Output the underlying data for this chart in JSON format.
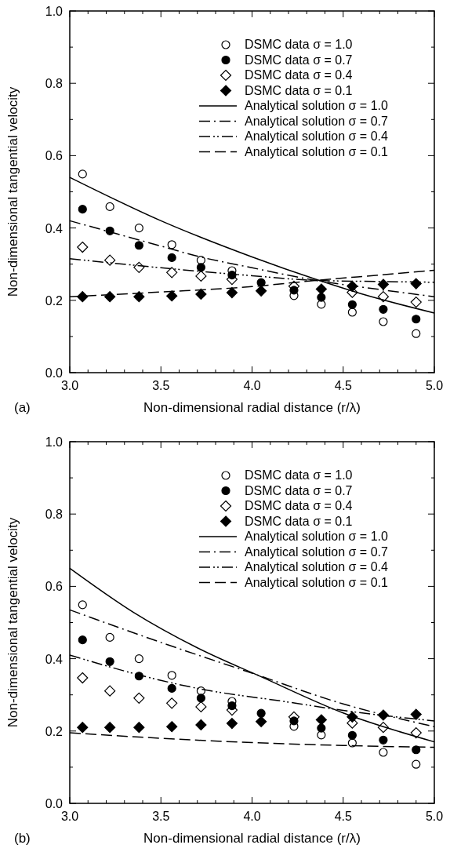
{
  "chart_data": [
    {
      "type": "scatter",
      "xlabel": "Non-dimensional radial distance (r/λ)",
      "ylabel": "Non-dimensional tangential velocity",
      "annotations": [
        "(a)"
      ],
      "legend": "top right",
      "xlim": [
        3.0,
        5.0
      ],
      "ylim": [
        0.0,
        1.0
      ],
      "xticks": [
        {
          "value": 3.0,
          "label": "3.0"
        },
        {
          "value": 3.1,
          "label": null
        },
        {
          "value": 3.2,
          "label": null
        },
        {
          "value": 3.3,
          "label": null
        },
        {
          "value": 3.4,
          "label": null
        },
        {
          "value": 3.5,
          "label": "3.5"
        },
        {
          "value": 3.6,
          "label": null
        },
        {
          "value": 3.7,
          "label": null
        },
        {
          "value": 3.8,
          "label": null
        },
        {
          "value": 3.9,
          "label": null
        },
        {
          "value": 4.0,
          "label": "4.0"
        },
        {
          "value": 4.1,
          "label": null
        },
        {
          "value": 4.2,
          "label": null
        },
        {
          "value": 4.3,
          "label": null
        },
        {
          "value": 4.4,
          "label": null
        },
        {
          "value": 4.5,
          "label": "4.5"
        },
        {
          "value": 4.6,
          "label": null
        },
        {
          "value": 4.7,
          "label": null
        },
        {
          "value": 4.8,
          "label": null
        },
        {
          "value": 4.9,
          "label": null
        },
        {
          "value": 5.0,
          "label": "5.0"
        }
      ],
      "yticks": [
        {
          "value": 0.0,
          "label": "0.0"
        },
        {
          "value": 0.1,
          "label": null
        },
        {
          "value": 0.2,
          "label": "0.2"
        },
        {
          "value": 0.3,
          "label": null
        },
        {
          "value": 0.4,
          "label": "0.4"
        },
        {
          "value": 0.5,
          "label": null
        },
        {
          "value": 0.6,
          "label": "0.6"
        },
        {
          "value": 0.7,
          "label": null
        },
        {
          "value": 0.8,
          "label": "0.8"
        },
        {
          "value": 0.9,
          "label": null
        },
        {
          "value": 1.0,
          "label": "1.0"
        }
      ],
      "x": [
        3.07,
        3.22,
        3.38,
        3.56,
        3.72,
        3.89,
        4.05,
        4.23,
        4.38,
        4.55,
        4.72,
        4.9
      ],
      "series": [
        {
          "name": "DSMC data σ = 1.0",
          "type": "scatter",
          "marker": "circle",
          "color": "#ffffff",
          "values": [
            0.549,
            0.459,
            0.4,
            0.354,
            0.311,
            0.282,
            null,
            0.213,
            0.189,
            0.167,
            0.141,
            0.108
          ]
        },
        {
          "name": "DSMC data σ = 0.7",
          "type": "scatter",
          "marker": "circle",
          "color": "#000000",
          "values": [
            0.452,
            0.392,
            0.352,
            0.318,
            0.291,
            0.27,
            0.249,
            0.228,
            0.208,
            0.188,
            0.175,
            0.148
          ]
        },
        {
          "name": "DSMC data σ = 0.4",
          "type": "scatter",
          "marker": "diamond",
          "color": "#ffffff",
          "values": [
            0.347,
            0.311,
            0.291,
            0.277,
            0.267,
            0.258,
            null,
            0.239,
            null,
            0.222,
            0.21,
            0.195
          ]
        },
        {
          "name": "DSMC data σ = 0.1",
          "type": "scatter",
          "marker": "diamond",
          "color": "#000000",
          "values": [
            0.21,
            0.21,
            0.21,
            0.212,
            0.217,
            0.221,
            0.226,
            null,
            0.231,
            0.239,
            0.244,
            0.246
          ]
        },
        {
          "name": "Analytical solution σ = 1.0",
          "type": "line",
          "line_style": "solid",
          "color": "#000000",
          "x": [
            3.0,
            3.5,
            4.0,
            4.35,
            4.6,
            5.0
          ],
          "values": [
            0.54,
            0.42,
            0.32,
            0.258,
            0.218,
            0.165
          ]
        },
        {
          "name": "Analytical solution σ = 0.7",
          "type": "line",
          "line_style": "dashdot",
          "color": "#000000",
          "x": [
            3.0,
            3.5,
            3.7,
            4.0,
            4.35,
            4.7,
            5.0
          ],
          "values": [
            0.42,
            0.35,
            0.322,
            0.29,
            0.255,
            0.23,
            0.21
          ]
        },
        {
          "name": "Analytical solution σ = 0.4",
          "type": "line",
          "line_style": "dashdotdot",
          "color": "#000000",
          "x": [
            3.0,
            3.5,
            4.0,
            4.35,
            4.7,
            5.0
          ],
          "values": [
            0.315,
            0.29,
            0.268,
            0.255,
            0.252,
            0.25
          ]
        },
        {
          "name": "Analytical solution σ = 0.1",
          "type": "line",
          "line_style": "dashed",
          "color": "#000000",
          "x": [
            3.0,
            3.5,
            4.0,
            4.35,
            4.7,
            5.0
          ],
          "values": [
            0.21,
            0.223,
            0.238,
            0.255,
            0.27,
            0.283
          ]
        }
      ]
    },
    {
      "type": "scatter",
      "xlabel": "Non-dimensional radial distance (r/λ)",
      "ylabel": "Non-dimensional tangential velocity",
      "annotations": [
        "(b)"
      ],
      "legend": "top right",
      "xlim": [
        3.0,
        5.0
      ],
      "ylim": [
        0.0,
        1.0
      ],
      "xticks": [
        {
          "value": 3.0,
          "label": "3.0"
        },
        {
          "value": 3.1,
          "label": null
        },
        {
          "value": 3.2,
          "label": null
        },
        {
          "value": 3.3,
          "label": null
        },
        {
          "value": 3.4,
          "label": null
        },
        {
          "value": 3.5,
          "label": "3.5"
        },
        {
          "value": 3.6,
          "label": null
        },
        {
          "value": 3.7,
          "label": null
        },
        {
          "value": 3.8,
          "label": null
        },
        {
          "value": 3.9,
          "label": null
        },
        {
          "value": 4.0,
          "label": "4.0"
        },
        {
          "value": 4.1,
          "label": null
        },
        {
          "value": 4.2,
          "label": null
        },
        {
          "value": 4.3,
          "label": null
        },
        {
          "value": 4.4,
          "label": null
        },
        {
          "value": 4.5,
          "label": "4.5"
        },
        {
          "value": 4.6,
          "label": null
        },
        {
          "value": 4.7,
          "label": null
        },
        {
          "value": 4.8,
          "label": null
        },
        {
          "value": 4.9,
          "label": null
        },
        {
          "value": 5.0,
          "label": "5.0"
        }
      ],
      "yticks": [
        {
          "value": 0.0,
          "label": "0.0"
        },
        {
          "value": 0.1,
          "label": null
        },
        {
          "value": 0.2,
          "label": "0.2"
        },
        {
          "value": 0.3,
          "label": null
        },
        {
          "value": 0.4,
          "label": "0.4"
        },
        {
          "value": 0.5,
          "label": null
        },
        {
          "value": 0.6,
          "label": "0.6"
        },
        {
          "value": 0.7,
          "label": null
        },
        {
          "value": 0.8,
          "label": "0.8"
        },
        {
          "value": 0.9,
          "label": null
        },
        {
          "value": 1.0,
          "label": "1.0"
        }
      ],
      "x": [
        3.07,
        3.22,
        3.38,
        3.56,
        3.72,
        3.89,
        4.05,
        4.23,
        4.38,
        4.55,
        4.72,
        4.9
      ],
      "series": [
        {
          "name": "DSMC data σ = 1.0",
          "type": "scatter",
          "marker": "circle",
          "color": "#ffffff",
          "values": [
            0.549,
            0.459,
            0.4,
            0.354,
            0.311,
            0.282,
            null,
            0.213,
            0.189,
            0.167,
            0.141,
            0.108
          ]
        },
        {
          "name": "DSMC data σ = 0.7",
          "type": "scatter",
          "marker": "circle",
          "color": "#000000",
          "values": [
            0.452,
            0.392,
            0.352,
            0.318,
            0.291,
            0.27,
            0.249,
            0.228,
            0.208,
            0.188,
            0.175,
            0.148
          ]
        },
        {
          "name": "DSMC data σ = 0.4",
          "type": "scatter",
          "marker": "diamond",
          "color": "#ffffff",
          "values": [
            0.347,
            0.311,
            0.291,
            0.277,
            0.267,
            0.258,
            null,
            0.239,
            null,
            0.222,
            0.21,
            0.195
          ]
        },
        {
          "name": "DSMC data σ = 0.1",
          "type": "scatter",
          "marker": "diamond",
          "color": "#000000",
          "values": [
            0.21,
            0.21,
            0.21,
            0.212,
            0.217,
            0.221,
            0.226,
            null,
            0.231,
            0.239,
            0.244,
            0.246
          ]
        },
        {
          "name": "Analytical solution σ = 1.0",
          "type": "line",
          "line_style": "solid",
          "color": "#000000",
          "x": [
            3.0,
            3.35,
            3.7,
            4.05,
            4.5,
            5.0
          ],
          "values": [
            0.65,
            0.528,
            0.43,
            0.35,
            0.25,
            0.17
          ]
        },
        {
          "name": "Analytical solution σ = 0.7",
          "type": "line",
          "line_style": "dashdot",
          "color": "#000000",
          "x": [
            3.0,
            3.5,
            4.0,
            4.5,
            5.0
          ],
          "values": [
            0.535,
            0.445,
            0.36,
            0.275,
            0.212
          ]
        },
        {
          "name": "Analytical solution σ = 0.4",
          "type": "line",
          "line_style": "dashdotdot",
          "color": "#000000",
          "x": [
            3.0,
            3.5,
            3.7,
            4.2,
            4.5,
            5.0
          ],
          "values": [
            0.41,
            0.34,
            0.318,
            0.28,
            0.257,
            0.228
          ]
        },
        {
          "name": "Analytical solution σ = 0.1",
          "type": "line",
          "line_style": "dashed",
          "color": "#000000",
          "x": [
            3.0,
            3.5,
            4.0,
            4.5,
            5.0
          ],
          "values": [
            0.195,
            0.18,
            0.168,
            0.16,
            0.155
          ]
        }
      ]
    }
  ]
}
